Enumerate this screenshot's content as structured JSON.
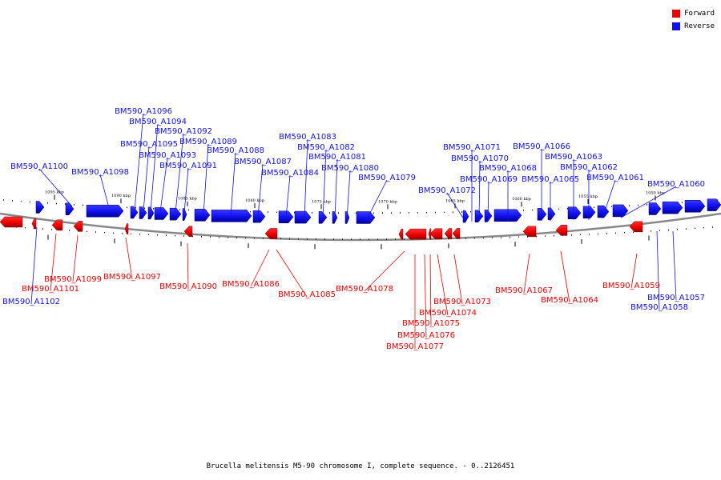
{
  "legend": {
    "forward_label": "Forward",
    "reverse_label": "Reverse",
    "forward_color": "#ee0000",
    "reverse_color": "#1010ee"
  },
  "caption": "Brucella melitensis M5-90 chromosome I, complete sequence. - 0..2126451",
  "diagram": {
    "type": "circular-genome-map-segment",
    "backbone_color": "#888888",
    "scale_labels": [
      "1095 kbp",
      "1090 kbp",
      "1085 kbp",
      "1080 kbp",
      "1075 kbp",
      "1070 kbp",
      "1065 kbp",
      "1060 kbp",
      "1055 kbp",
      "1050 kbp"
    ],
    "forward_genes": [
      "BM590_A1101",
      "BM590_A1099",
      "BM590_A1097",
      "BM590_A1090",
      "BM590_A1086",
      "BM590_A1085",
      "BM590_A1078",
      "BM590_A1077",
      "BM590_A1076",
      "BM590_A1075",
      "BM590_A1074",
      "BM590_A1073",
      "BM590_A1067",
      "BM590_A1064",
      "BM590_A1059"
    ],
    "reverse_genes": [
      "BM590_A1102",
      "BM590_A1100",
      "BM590_A1098",
      "BM590_A1096",
      "BM590_A1095",
      "BM590_A1094",
      "BM590_A1093",
      "BM590_A1092",
      "BM590_A1091",
      "BM590_A1089",
      "BM590_A1088",
      "BM590_A1087",
      "BM590_A1084",
      "BM590_A1083",
      "BM590_A1082",
      "BM590_A1081",
      "BM590_A1080",
      "BM590_A1079",
      "BM590_A1072",
      "BM590_A1071",
      "BM590_A1070",
      "BM590_A1069",
      "BM590_A1068",
      "BM590_A1066",
      "BM590_A1065",
      "BM590_A1063",
      "BM590_A1062",
      "BM590_A1061",
      "BM590_A1060",
      "BM590_A1058",
      "BM590_A1057"
    ]
  }
}
